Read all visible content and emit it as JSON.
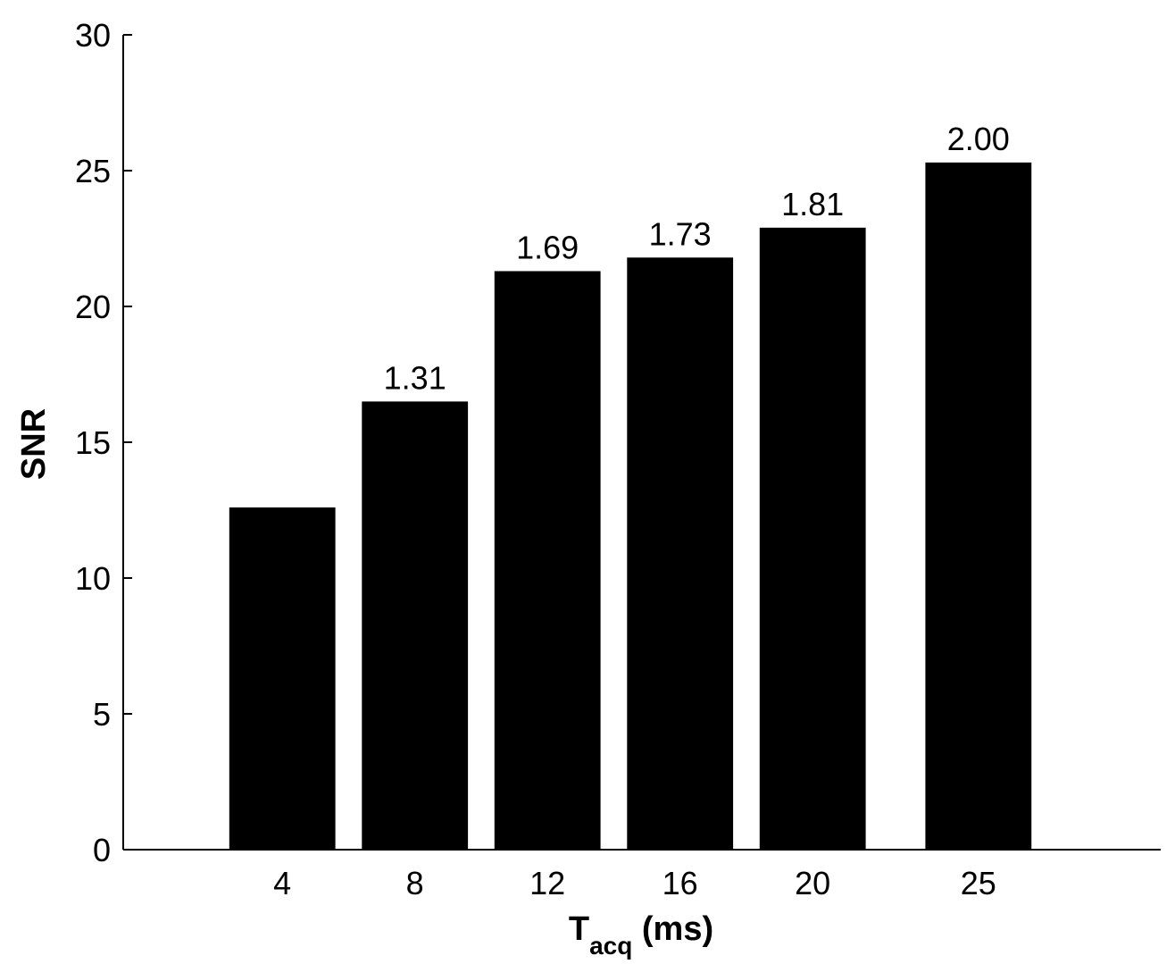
{
  "chart_data": {
    "type": "bar",
    "categories": [
      "4",
      "8",
      "12",
      "16",
      "20",
      "25"
    ],
    "x": [
      4,
      8,
      12,
      16,
      20,
      25
    ],
    "values": [
      12.6,
      16.5,
      21.3,
      21.8,
      22.9,
      25.3
    ],
    "data_labels": [
      "",
      "1.31",
      "1.69",
      "1.73",
      "1.81",
      "2.00"
    ],
    "xlabel": {
      "main": "T",
      "subscript": "acq",
      "unit": " (ms)"
    },
    "ylabel": "SNR",
    "ylim": [
      0,
      30
    ],
    "yticks": [
      0,
      5,
      10,
      15,
      20,
      25,
      30
    ],
    "xlim": [
      -0.8,
      30.5
    ],
    "bar_width": 3.2,
    "bar_color": "#000000",
    "grid": false
  }
}
